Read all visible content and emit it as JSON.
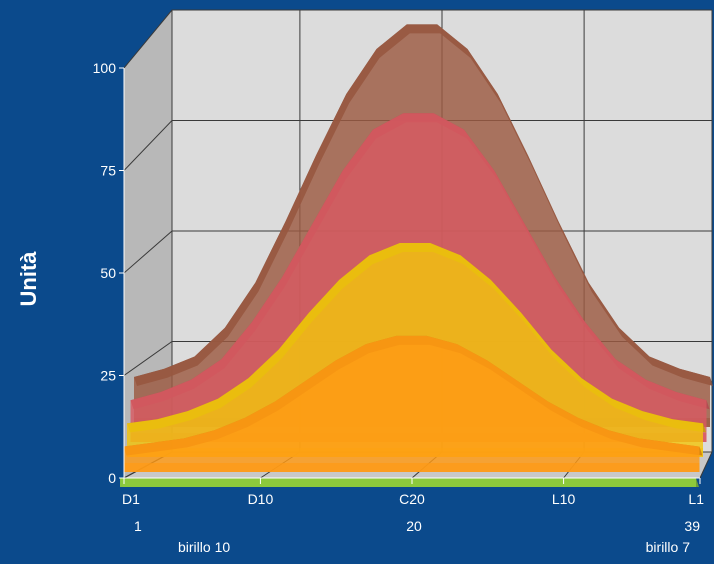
{
  "colors": {
    "background": "#0b4a8c",
    "wall_back": "#dcdcdc",
    "wall_side": "#b8b8b8",
    "floor": "#c8c8c8",
    "grid": "#3a3a3a"
  },
  "chart_data": {
    "type": "area",
    "three_d": true,
    "title": "",
    "ylabel": "Unità",
    "xlabel": "",
    "ylim": [
      0,
      100
    ],
    "yticks": [
      0,
      25,
      50,
      75,
      100
    ],
    "grid": true,
    "x_positions": [
      1,
      10,
      20,
      30,
      39
    ],
    "x_tick_labels": [
      "D1",
      "D10",
      "C20",
      "L10",
      "L1"
    ],
    "x_sub_labels": [
      "1",
      "20",
      "39"
    ],
    "x_corner_labels": [
      "birillo 10",
      "birillo 7"
    ],
    "x": [
      1,
      3,
      5,
      7,
      9,
      11,
      13,
      15,
      17,
      19,
      21,
      23,
      25,
      27,
      29,
      31,
      33,
      35,
      37,
      39
    ],
    "series": [
      {
        "color": "#9c5a42",
        "values": [
          10,
          12,
          15,
          22,
          33,
          48,
          64,
          79,
          90,
          96,
          96,
          90,
          79,
          64,
          48,
          33,
          22,
          15,
          12,
          10
        ]
      },
      {
        "color": "#d85a62",
        "values": [
          8,
          10,
          13,
          18,
          27,
          38,
          51,
          64,
          74,
          78,
          78,
          74,
          64,
          51,
          38,
          27,
          18,
          13,
          10,
          8
        ]
      },
      {
        "color": "#f2c40e",
        "values": [
          6,
          7,
          9,
          12,
          17,
          24,
          33,
          41,
          47,
          50,
          50,
          47,
          41,
          33,
          24,
          17,
          12,
          9,
          7,
          6
        ]
      },
      {
        "color": "#ff9a14",
        "values": [
          4,
          5,
          6,
          8,
          11,
          15,
          20,
          25,
          29,
          31,
          31,
          29,
          25,
          20,
          15,
          11,
          8,
          6,
          5,
          4
        ]
      },
      {
        "color": "#8ecb3c",
        "values": [
          0,
          0,
          0,
          0,
          0,
          0,
          0,
          0,
          0,
          0,
          0,
          0,
          0,
          0,
          0,
          0,
          0,
          0,
          0,
          0
        ]
      }
    ]
  }
}
